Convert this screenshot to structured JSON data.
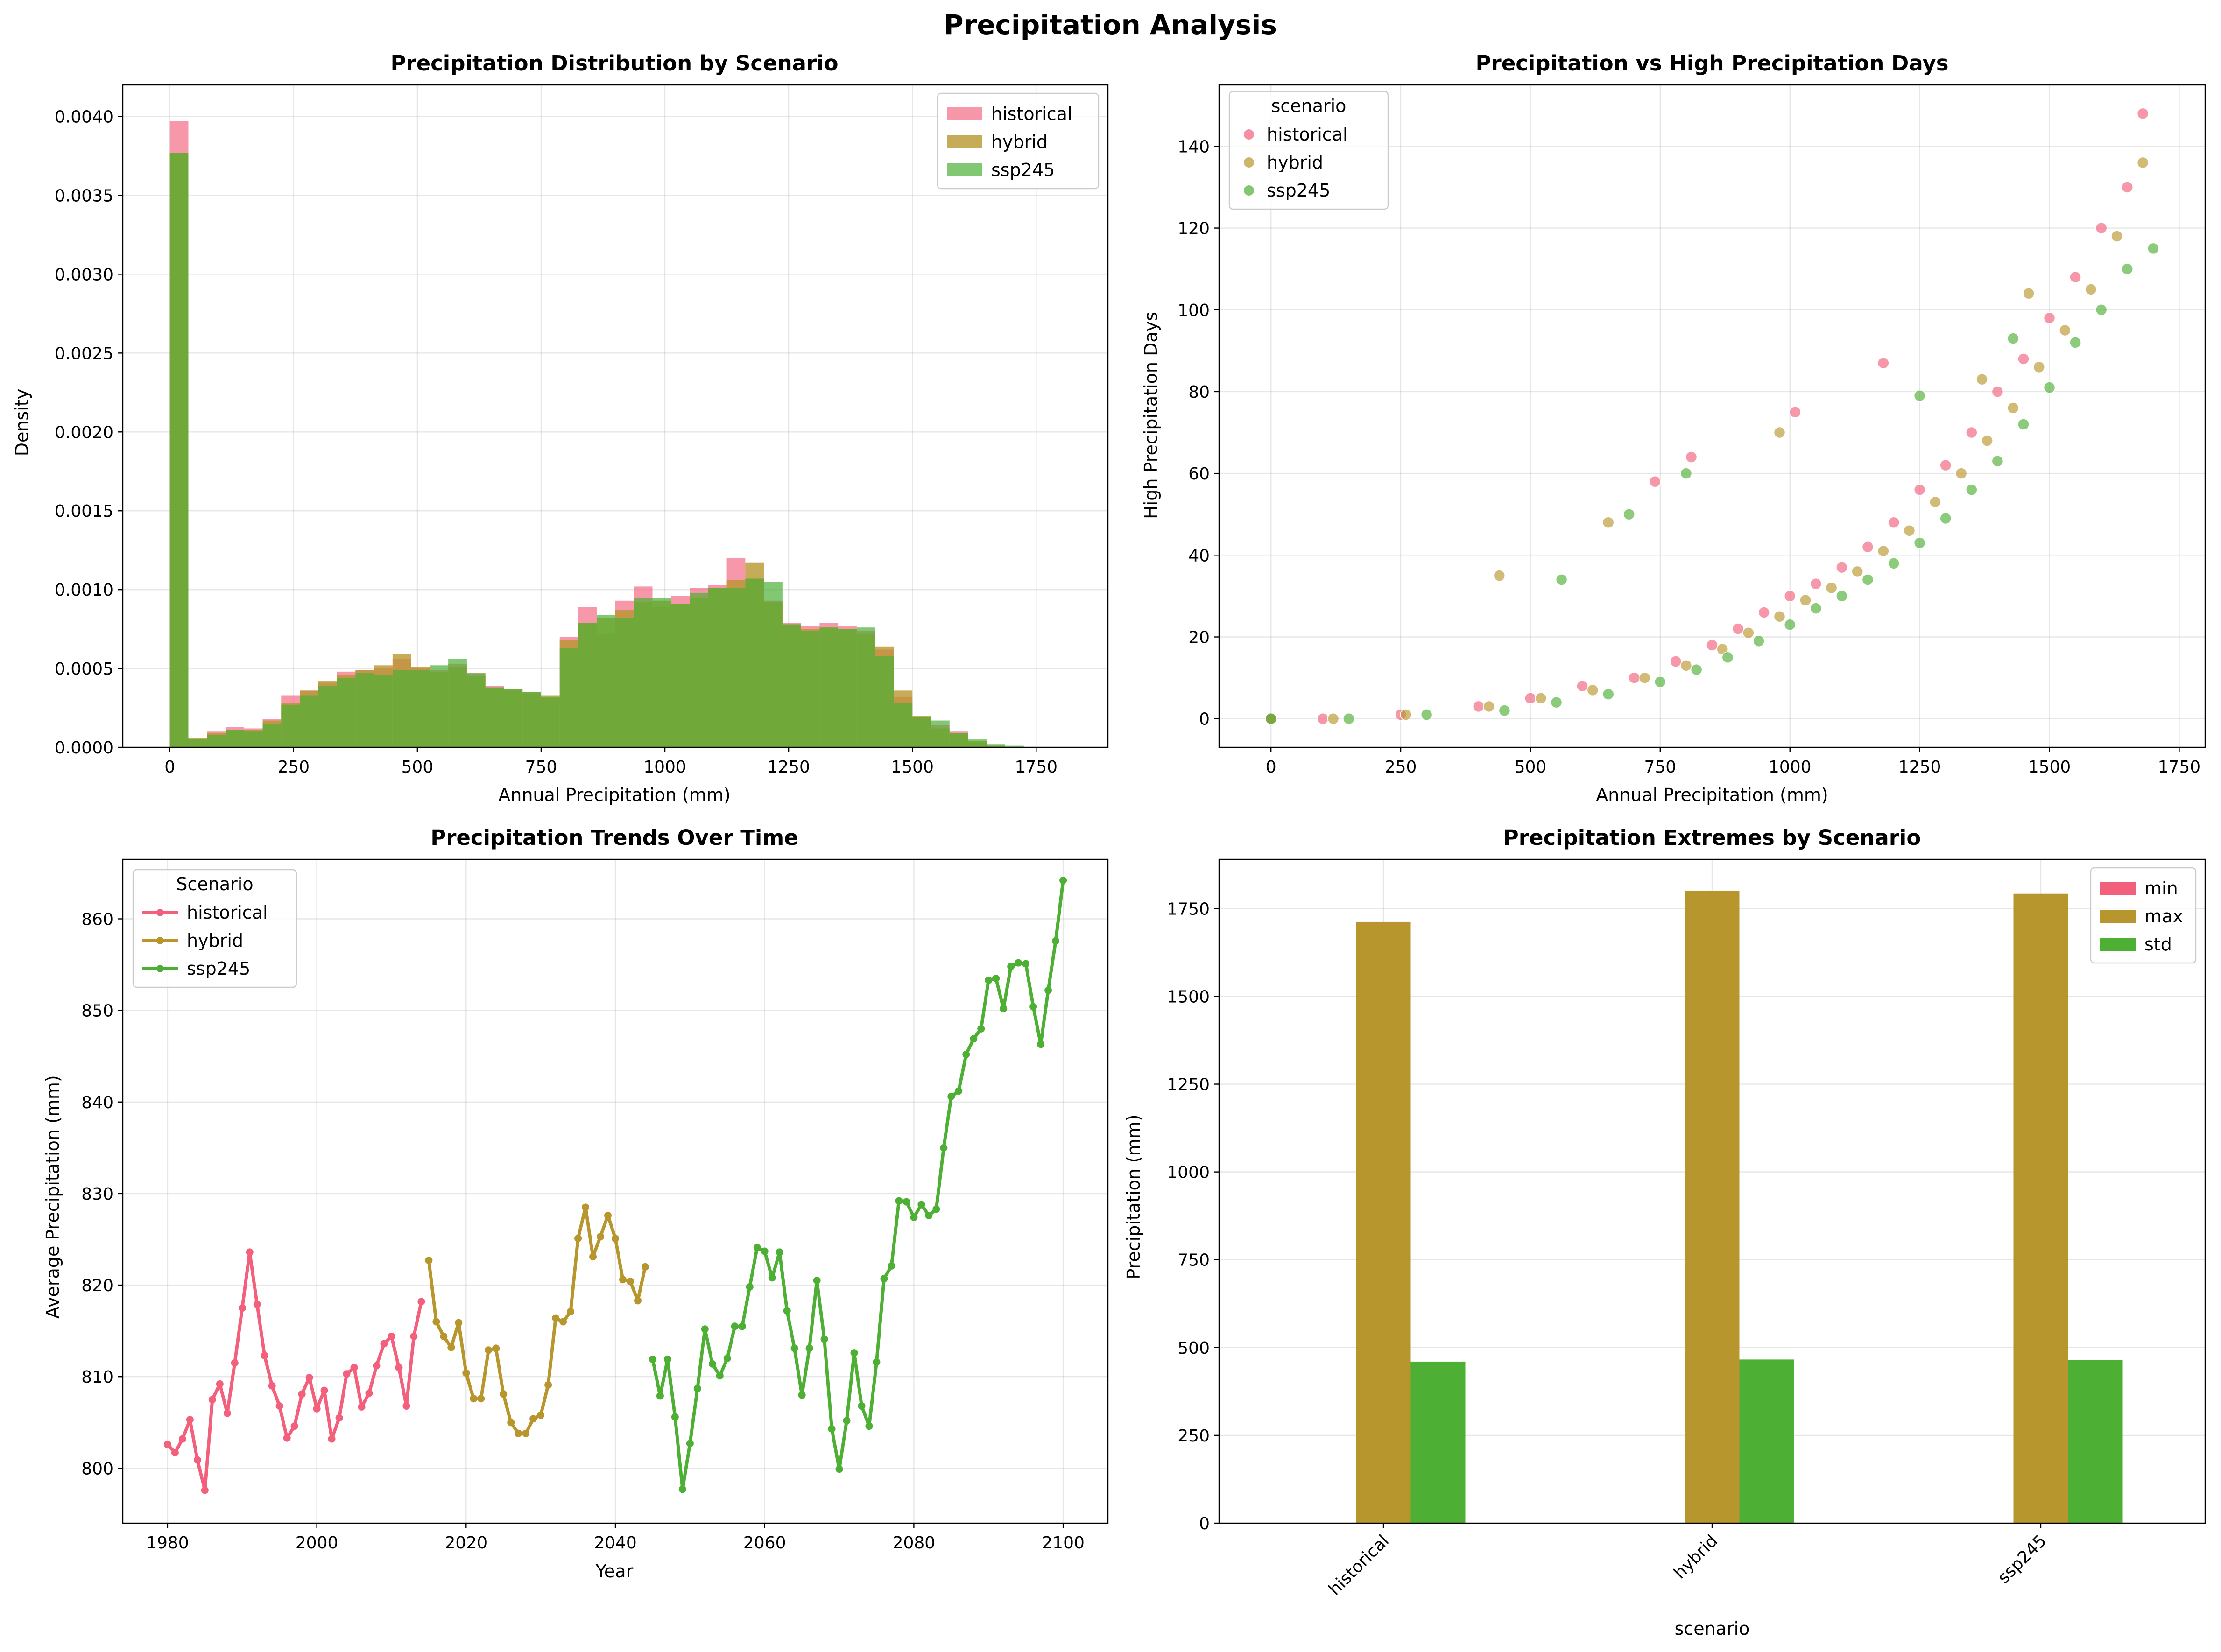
{
  "figure": {
    "title": "Precipitation Analysis"
  },
  "colors": {
    "historical": "#f2607c",
    "hybrid": "#b8962e",
    "ssp245": "#4daf34"
  },
  "chart_data": [
    {
      "type": "bar",
      "subtype": "histogram",
      "title": "Precipitation Distribution by Scenario",
      "xlabel": "Annual Precipitation (mm)",
      "ylabel": "Density",
      "xlim": [
        -95,
        1895
      ],
      "ylim": [
        0,
        0.0042
      ],
      "xticks": [
        0,
        250,
        500,
        750,
        1000,
        1250,
        1500,
        1750
      ],
      "yticks": [
        "0.0000",
        "0.0005",
        "0.0010",
        "0.0015",
        "0.0020",
        "0.0025",
        "0.0030",
        "0.0035",
        "0.0040"
      ],
      "grid": true,
      "legend": {
        "position": "top-right",
        "entries": [
          "historical",
          "hybrid",
          "ssp245"
        ]
      },
      "bin_edges": [
        0,
        37.5,
        75,
        112.5,
        150,
        187.5,
        225,
        262.5,
        300,
        337.5,
        375,
        412.5,
        450,
        487.5,
        525,
        562.5,
        600,
        637.5,
        675,
        712.5,
        750,
        787.5,
        825,
        862.5,
        900,
        937.5,
        975,
        1012.5,
        1050,
        1087.5,
        1125,
        1162.5,
        1200,
        1237.5,
        1275,
        1312.5,
        1350,
        1387.5,
        1425,
        1462.5,
        1500,
        1537.5,
        1575,
        1612.5,
        1650,
        1687.5,
        1725
      ],
      "series": [
        {
          "name": "historical",
          "values": [
            0.00397,
            5e-05,
            0.0001,
            0.00013,
            0.00012,
            0.00018,
            0.00033,
            0.00036,
            0.00041,
            0.00048,
            0.00049,
            0.0005,
            0.00056,
            0.0005,
            0.00049,
            0.00053,
            0.00047,
            0.00039,
            0.00036,
            0.00034,
            0.00031,
            0.0007,
            0.00089,
            0.00072,
            0.00093,
            0.00102,
            0.00089,
            0.00096,
            0.00101,
            0.00103,
            0.0012,
            0.00107,
            0.00093,
            0.00079,
            0.00077,
            0.00079,
            0.00077,
            0.00074,
            0.00062,
            0.00032,
            0.00019,
            0.00014,
            0.0001,
            3e-05,
            1e-05,
            0,
            0
          ]
        },
        {
          "name": "hybrid",
          "values": [
            0.00377,
            6e-05,
            9e-05,
            0.00011,
            0.00011,
            0.00017,
            0.00028,
            0.00036,
            0.00042,
            0.00046,
            0.00049,
            0.00052,
            0.00059,
            0.00051,
            0.00048,
            0.00051,
            0.00045,
            0.00038,
            0.00037,
            0.00035,
            0.00033,
            0.00068,
            0.00079,
            0.00082,
            0.00087,
            0.00092,
            0.00093,
            0.00091,
            0.00095,
            0.00101,
            0.00106,
            0.00117,
            0.00092,
            0.00078,
            0.00075,
            0.00076,
            0.00075,
            0.00072,
            0.00064,
            0.00036,
            0.0002,
            0.00012,
            9e-05,
            4e-05,
            1e-05,
            0,
            0
          ]
        },
        {
          "name": "ssp245",
          "values": [
            0.00377,
            5e-05,
            8e-05,
            0.00011,
            0.0001,
            0.00015,
            0.00027,
            0.00033,
            0.00039,
            0.00044,
            0.00047,
            0.00046,
            0.00049,
            0.00049,
            0.00052,
            0.00056,
            0.00047,
            0.00038,
            0.00037,
            0.00035,
            0.00032,
            0.00063,
            0.00079,
            0.00084,
            0.00082,
            0.00095,
            0.00095,
            0.00091,
            0.00098,
            0.00101,
            0.00101,
            0.00107,
            0.00105,
            0.00078,
            0.00074,
            0.00076,
            0.00075,
            0.00076,
            0.00058,
            0.00028,
            0.00019,
            0.00017,
            9e-05,
            5e-05,
            2e-05,
            1e-05,
            0
          ]
        }
      ]
    },
    {
      "type": "scatter",
      "title": "Precipitation vs High Precipitation Days",
      "xlabel": "Annual Precipitation (mm)",
      "ylabel": "High Precipitation Days",
      "xlim": [
        -100,
        1800
      ],
      "ylim": [
        -7,
        155
      ],
      "xticks": [
        0,
        250,
        500,
        750,
        1000,
        1250,
        1500,
        1750
      ],
      "yticks": [
        0,
        20,
        40,
        60,
        80,
        100,
        120,
        140
      ],
      "grid": true,
      "legend": {
        "position": "top-left",
        "title": "scenario",
        "entries": [
          "historical",
          "hybrid",
          "ssp245"
        ]
      },
      "relationship": "roughly exponential; near 0 days below ~600 mm, ~20 at 1000 mm, ~60 at 1300 mm, ~100-145 at 1500-1700 mm",
      "series": [
        {
          "name": "historical",
          "x": [
            0,
            100,
            250,
            400,
            500,
            600,
            700,
            780,
            850,
            900,
            950,
            1000,
            1050,
            1100,
            1150,
            1200,
            1250,
            1300,
            1350,
            1400,
            1450,
            1500,
            1550,
            1600,
            1650,
            1680,
            740,
            810,
            1010,
            1180
          ],
          "y": [
            0,
            0,
            1,
            3,
            5,
            8,
            10,
            14,
            18,
            22,
            26,
            30,
            33,
            37,
            42,
            48,
            56,
            62,
            70,
            80,
            88,
            98,
            108,
            120,
            130,
            148,
            58,
            64,
            75,
            87
          ]
        },
        {
          "name": "hybrid",
          "x": [
            0,
            120,
            260,
            420,
            520,
            620,
            720,
            800,
            870,
            920,
            980,
            1030,
            1080,
            1130,
            1180,
            1230,
            1280,
            1330,
            1380,
            1430,
            1480,
            1530,
            1580,
            1630,
            1680,
            440,
            650,
            980,
            1370,
            1460
          ],
          "y": [
            0,
            0,
            1,
            3,
            5,
            7,
            10,
            13,
            17,
            21,
            25,
            29,
            32,
            36,
            41,
            46,
            53,
            60,
            68,
            76,
            86,
            95,
            105,
            118,
            136,
            35,
            48,
            70,
            83,
            104
          ]
        },
        {
          "name": "ssp245",
          "x": [
            0,
            150,
            300,
            450,
            550,
            650,
            750,
            820,
            880,
            940,
            1000,
            1050,
            1100,
            1150,
            1200,
            1250,
            1300,
            1350,
            1400,
            1450,
            1500,
            1550,
            1600,
            1650,
            1700,
            560,
            690,
            800,
            1250,
            1430
          ],
          "y": [
            0,
            0,
            1,
            2,
            4,
            6,
            9,
            12,
            15,
            19,
            23,
            27,
            30,
            34,
            38,
            43,
            49,
            56,
            63,
            72,
            81,
            92,
            100,
            110,
            115,
            34,
            50,
            60,
            79,
            93
          ]
        }
      ]
    },
    {
      "type": "line",
      "title": "Precipitation Trends Over Time",
      "xlabel": "Year",
      "ylabel": "Average Precipitation (mm)",
      "xlim": [
        1974,
        2106
      ],
      "ylim": [
        794,
        866.5
      ],
      "xticks": [
        1980,
        2000,
        2020,
        2040,
        2060,
        2080,
        2100
      ],
      "yticks": [
        800,
        810,
        820,
        830,
        840,
        850,
        860
      ],
      "grid": true,
      "legend": {
        "position": "top-left",
        "title": "Scenario",
        "entries": [
          "historical",
          "hybrid",
          "ssp245"
        ]
      },
      "series": [
        {
          "name": "historical",
          "x": [
            1980,
            1981,
            1982,
            1983,
            1984,
            1985,
            1986,
            1987,
            1988,
            1989,
            1990,
            1991,
            1992,
            1993,
            1994,
            1995,
            1996,
            1997,
            1998,
            1999,
            2000,
            2001,
            2002,
            2003,
            2004,
            2005,
            2006,
            2007,
            2008,
            2009,
            2010,
            2011,
            2012,
            2013,
            2014
          ],
          "values": [
            802.6,
            801.7,
            803.2,
            805.3,
            800.9,
            797.6,
            807.5,
            809.2,
            806.0,
            811.5,
            817.5,
            823.6,
            817.9,
            812.3,
            809.0,
            806.8,
            803.3,
            804.6,
            808.1,
            809.9,
            806.5,
            808.5,
            803.2,
            805.5,
            810.3,
            811.0,
            806.7,
            808.2,
            811.2,
            813.6,
            814.4,
            811.0,
            806.8,
            814.4,
            818.2
          ]
        },
        {
          "name": "hybrid",
          "x": [
            2015,
            2016,
            2017,
            2018,
            2019,
            2020,
            2021,
            2022,
            2023,
            2024,
            2025,
            2026,
            2027,
            2028,
            2029,
            2030,
            2031,
            2032,
            2033,
            2034,
            2035,
            2036,
            2037,
            2038,
            2039,
            2040,
            2041,
            2042,
            2043,
            2044
          ],
          "values": [
            822.7,
            816.0,
            814.4,
            813.2,
            815.9,
            810.4,
            807.6,
            807.6,
            812.9,
            813.1,
            808.1,
            805.0,
            803.8,
            803.8,
            805.4,
            805.8,
            809.1,
            816.4,
            816.0,
            817.1,
            825.1,
            828.5,
            823.1,
            825.3,
            827.6,
            825.1,
            820.6,
            820.4,
            818.3,
            822.0
          ]
        },
        {
          "name": "ssp245",
          "x": [
            2045,
            2046,
            2047,
            2048,
            2049,
            2050,
            2051,
            2052,
            2053,
            2054,
            2055,
            2056,
            2057,
            2058,
            2059,
            2060,
            2061,
            2062,
            2063,
            2064,
            2065,
            2066,
            2067,
            2068,
            2069,
            2070,
            2071,
            2072,
            2073,
            2074,
            2075,
            2076,
            2077,
            2078,
            2079,
            2080,
            2081,
            2082,
            2083,
            2084,
            2085,
            2086,
            2087,
            2088,
            2089,
            2090,
            2091,
            2092,
            2093,
            2094,
            2095,
            2096,
            2097,
            2098,
            2099,
            2100
          ],
          "values": [
            811.9,
            807.9,
            811.9,
            805.6,
            797.7,
            802.7,
            808.7,
            815.2,
            811.4,
            810.1,
            812.0,
            815.5,
            815.5,
            819.8,
            824.1,
            823.7,
            820.8,
            823.6,
            817.2,
            813.1,
            808.0,
            813.1,
            820.5,
            814.1,
            804.3,
            799.9,
            805.2,
            812.6,
            806.8,
            804.6,
            811.6,
            820.7,
            822.1,
            829.2,
            829.1,
            827.4,
            828.8,
            827.6,
            828.3,
            835.0,
            840.6,
            841.2,
            845.2,
            846.9,
            848.0,
            853.3,
            853.5,
            850.2,
            854.8,
            855.2,
            855.1,
            850.4,
            846.3,
            852.2,
            857.6,
            864.2
          ]
        }
      ]
    },
    {
      "type": "bar",
      "subtype": "grouped",
      "title": "Precipitation Extremes by Scenario",
      "xlabel": "scenario",
      "ylabel": "Precipitation (mm)",
      "categories": [
        "historical",
        "hybrid",
        "ssp245"
      ],
      "ylim": [
        0,
        1890
      ],
      "yticks": [
        0,
        250,
        500,
        750,
        1000,
        1250,
        1500,
        1750
      ],
      "grid": true,
      "legend": {
        "position": "top-right",
        "entries": [
          "min",
          "max",
          "std"
        ]
      },
      "series": [
        {
          "name": "min",
          "values": [
            0,
            0,
            0
          ]
        },
        {
          "name": "max",
          "values": [
            1712,
            1801,
            1792
          ]
        },
        {
          "name": "std",
          "values": [
            460,
            466,
            464
          ]
        }
      ]
    }
  ]
}
